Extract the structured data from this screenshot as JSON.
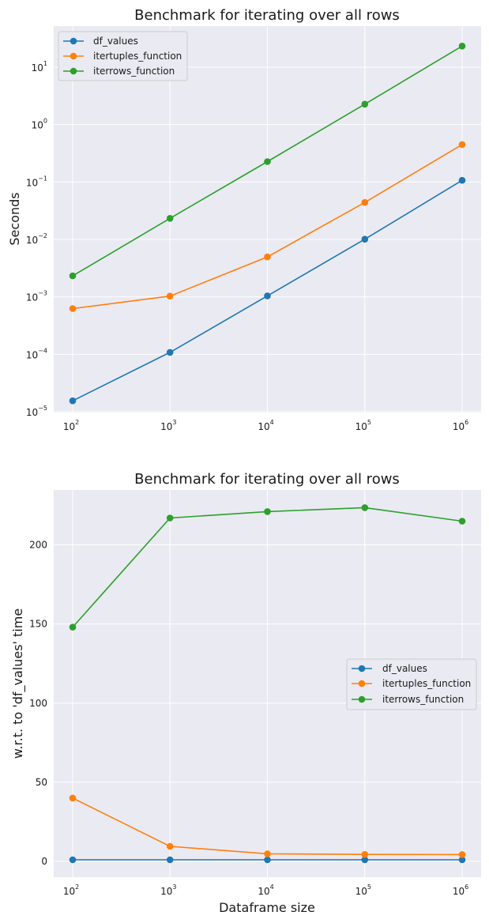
{
  "chart_data": [
    {
      "type": "line",
      "title": "Benchmark for iterating over all rows",
      "xlabel": "",
      "ylabel": "Seconds",
      "xscale": "log",
      "yscale": "log",
      "x": [
        100,
        1000,
        10000,
        100000,
        1000000
      ],
      "xticks": [
        {
          "base": "10",
          "exp": "2"
        },
        {
          "base": "10",
          "exp": "3"
        },
        {
          "base": "10",
          "exp": "4"
        },
        {
          "base": "10",
          "exp": "5"
        },
        {
          "base": "10",
          "exp": "6"
        }
      ],
      "yticks": [
        {
          "base": "10",
          "exp": "−5"
        },
        {
          "base": "10",
          "exp": "−4"
        },
        {
          "base": "10",
          "exp": "−3"
        },
        {
          "base": "10",
          "exp": "−2"
        },
        {
          "base": "10",
          "exp": "−1"
        },
        {
          "base": "10",
          "exp": "0"
        },
        {
          "base": "10",
          "exp": "1"
        }
      ],
      "legend_position": "upper-left",
      "grid": true,
      "series": [
        {
          "name": "df_values",
          "color": "#1f77b4",
          "values": [
            1.55e-05,
            0.000108,
            0.00104,
            0.0101,
            0.107
          ]
        },
        {
          "name": "itertuples_function",
          "color": "#ff7f0e",
          "values": [
            0.000625,
            0.00103,
            0.00497,
            0.0441,
            0.45
          ]
        },
        {
          "name": "iterrows_function",
          "color": "#2ca02c",
          "values": [
            0.00232,
            0.0233,
            0.227,
            2.27,
            23.3
          ]
        }
      ]
    },
    {
      "type": "line",
      "title": "Benchmark for iterating over all rows",
      "xlabel": "Dataframe size",
      "ylabel": "w.r.t. to 'df_values' time",
      "xscale": "log",
      "yscale": "linear",
      "x": [
        100,
        1000,
        10000,
        100000,
        1000000
      ],
      "xticks": [
        {
          "base": "10",
          "exp": "2"
        },
        {
          "base": "10",
          "exp": "3"
        },
        {
          "base": "10",
          "exp": "4"
        },
        {
          "base": "10",
          "exp": "5"
        },
        {
          "base": "10",
          "exp": "6"
        }
      ],
      "yticks": [
        "0",
        "50",
        "100",
        "150",
        "200"
      ],
      "legend_position": "center-right",
      "grid": true,
      "series": [
        {
          "name": "df_values",
          "color": "#1f77b4",
          "values": [
            1,
            1,
            1,
            1,
            1
          ]
        },
        {
          "name": "itertuples_function",
          "color": "#ff7f0e",
          "values": [
            40,
            9.5,
            4.8,
            4.4,
            4.3
          ]
        },
        {
          "name": "iterrows_function",
          "color": "#2ca02c",
          "values": [
            148,
            217,
            221,
            223.5,
            215
          ]
        }
      ]
    }
  ]
}
